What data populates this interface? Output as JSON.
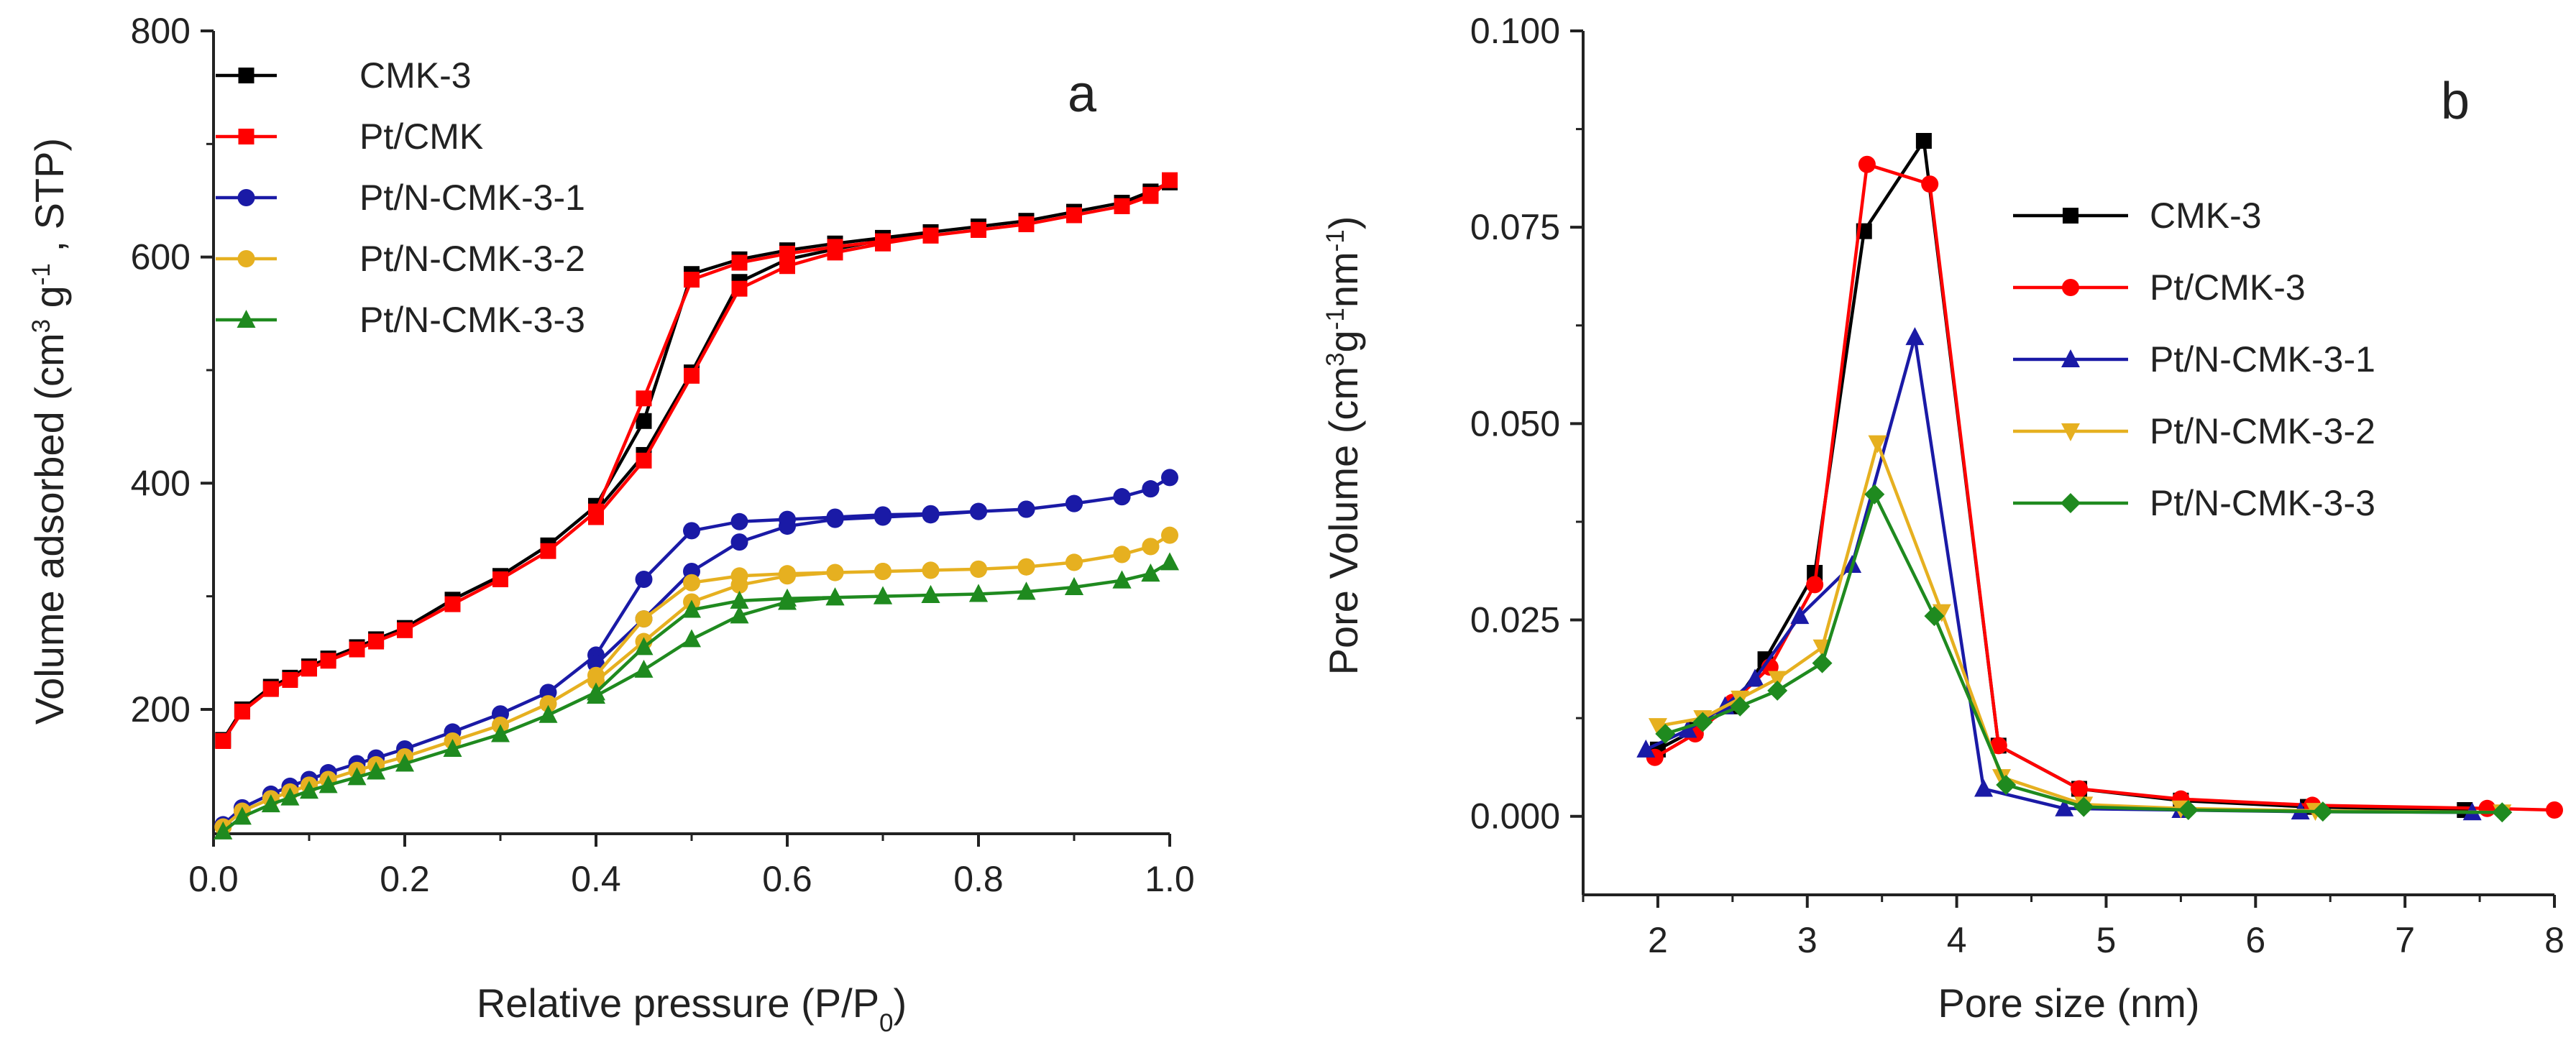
{
  "chart_data": [
    {
      "panel": "a",
      "type": "line",
      "title": "",
      "xlabel": "Relative pressure (P/P0)",
      "xlabel_parts": [
        "Relative pressure (P/P",
        "0",
        ")"
      ],
      "ylabel": "Volume adsorbed (cm3 g-1, STP)",
      "ylabel_parts": [
        "Volume adsorbed (cm",
        "3",
        " g",
        "-1",
        " , STP)"
      ],
      "xlim": [
        0,
        1.0
      ],
      "ylim": [
        90,
        800
      ],
      "xticks": [
        0.0,
        0.2,
        0.4,
        0.6,
        0.8,
        1.0
      ],
      "xtick_labels": [
        "0.0",
        "0.2",
        "0.4",
        "0.6",
        "0.8",
        "1.0"
      ],
      "yticks": [
        200,
        400,
        600,
        800
      ],
      "ytick_labels": [
        "200",
        "400",
        "600",
        "800"
      ],
      "grid": false,
      "legend_position": "top-left",
      "series": [
        {
          "name": "CMK-3",
          "color": "#000000",
          "marker": "square",
          "x": [
            0.01,
            0.03,
            0.06,
            0.08,
            0.1,
            0.12,
            0.15,
            0.17,
            0.2,
            0.25,
            0.3,
            0.35,
            0.4,
            0.45,
            0.5,
            0.55,
            0.6,
            0.65,
            0.7,
            0.75,
            0.8,
            0.85,
            0.9,
            0.95,
            0.98,
            1.0,
            0.98,
            0.95,
            0.9,
            0.85,
            0.8,
            0.75,
            0.7,
            0.65,
            0.6,
            0.55,
            0.5,
            0.45,
            0.4
          ],
          "y": [
            173,
            200,
            220,
            228,
            238,
            245,
            255,
            262,
            272,
            297,
            318,
            345,
            380,
            455,
            585,
            598,
            606,
            612,
            617,
            622,
            627,
            632,
            640,
            648,
            657,
            666,
            658,
            648,
            640,
            632,
            627,
            622,
            615,
            607,
            598,
            578,
            498,
            425,
            375
          ]
        },
        {
          "name": "Pt/CMK",
          "color": "#ff0000",
          "marker": "square",
          "x": [
            0.01,
            0.03,
            0.06,
            0.08,
            0.1,
            0.12,
            0.15,
            0.17,
            0.2,
            0.25,
            0.3,
            0.35,
            0.4,
            0.45,
            0.5,
            0.55,
            0.6,
            0.65,
            0.7,
            0.75,
            0.8,
            0.85,
            0.9,
            0.95,
            0.98,
            1.0,
            0.98,
            0.95,
            0.9,
            0.85,
            0.8,
            0.75,
            0.7,
            0.65,
            0.6,
            0.55,
            0.5,
            0.45,
            0.4
          ],
          "y": [
            172,
            198,
            218,
            226,
            236,
            243,
            253,
            260,
            270,
            293,
            315,
            340,
            375,
            475,
            580,
            595,
            603,
            609,
            614,
            619,
            624,
            629,
            637,
            645,
            654,
            668,
            655,
            645,
            637,
            629,
            624,
            619,
            612,
            604,
            592,
            572,
            495,
            420,
            370
          ]
        },
        {
          "name": "Pt/N-CMK-3-1",
          "color": "#1a1aa6",
          "marker": "circle",
          "x": [
            0.01,
            0.03,
            0.06,
            0.08,
            0.1,
            0.12,
            0.15,
            0.17,
            0.2,
            0.25,
            0.3,
            0.35,
            0.4,
            0.45,
            0.5,
            0.55,
            0.6,
            0.65,
            0.7,
            0.75,
            0.8,
            0.85,
            0.9,
            0.95,
            0.98,
            1.0,
            0.98,
            0.95,
            0.9,
            0.85,
            0.8,
            0.75,
            0.7,
            0.65,
            0.6,
            0.55,
            0.5,
            0.45,
            0.4
          ],
          "y": [
            98,
            113,
            125,
            132,
            138,
            144,
            152,
            157,
            165,
            180,
            196,
            215,
            248,
            315,
            358,
            366,
            368,
            370,
            372,
            373,
            375,
            377,
            382,
            388,
            395,
            405,
            395,
            388,
            382,
            377,
            375,
            372,
            370,
            368,
            362,
            348,
            322,
            280,
            240
          ]
        },
        {
          "name": "Pt/N-CMK-3-2",
          "color": "#e6b020",
          "marker": "circle",
          "x": [
            0.01,
            0.03,
            0.06,
            0.08,
            0.1,
            0.12,
            0.15,
            0.17,
            0.2,
            0.25,
            0.3,
            0.35,
            0.4,
            0.45,
            0.5,
            0.55,
            0.6,
            0.65,
            0.7,
            0.75,
            0.8,
            0.85,
            0.9,
            0.95,
            0.98,
            1.0,
            0.98,
            0.95,
            0.9,
            0.85,
            0.8,
            0.75,
            0.7,
            0.65,
            0.6,
            0.55,
            0.5,
            0.45,
            0.4
          ],
          "y": [
            96,
            110,
            121,
            127,
            133,
            138,
            146,
            151,
            158,
            172,
            186,
            205,
            230,
            280,
            312,
            318,
            320,
            321,
            322,
            323,
            324,
            326,
            330,
            337,
            344,
            354,
            344,
            337,
            330,
            326,
            324,
            323,
            322,
            321,
            318,
            310,
            295,
            260,
            225
          ]
        },
        {
          "name": "Pt/N-CMK-3-3",
          "color": "#1f8a1f",
          "marker": "triangle",
          "x": [
            0.01,
            0.03,
            0.06,
            0.08,
            0.1,
            0.12,
            0.15,
            0.17,
            0.2,
            0.25,
            0.3,
            0.35,
            0.4,
            0.45,
            0.5,
            0.55,
            0.6,
            0.65,
            0.7,
            0.75,
            0.8,
            0.85,
            0.9,
            0.95,
            0.98,
            1.0,
            0.98,
            0.95,
            0.9,
            0.85,
            0.8,
            0.75,
            0.7,
            0.65,
            0.6,
            0.55,
            0.5,
            0.45,
            0.4
          ],
          "y": [
            92,
            105,
            116,
            122,
            128,
            133,
            140,
            145,
            152,
            165,
            178,
            195,
            215,
            255,
            288,
            296,
            298,
            299,
            300,
            301,
            302,
            304,
            308,
            314,
            320,
            330,
            320,
            314,
            308,
            304,
            302,
            301,
            300,
            299,
            295,
            283,
            262,
            235,
            212
          ]
        }
      ]
    },
    {
      "panel": "b",
      "type": "line",
      "title": "",
      "xlabel": "Pore size (nm)",
      "ylabel": "Pore Volume (cm3g-1nm-1)",
      "ylabel_parts": [
        "Pore Volume (cm",
        "3",
        "g",
        "-1",
        "nm",
        "-1",
        ")"
      ],
      "xlim": [
        1.5,
        8
      ],
      "ylim": [
        -0.01,
        0.1
      ],
      "xticks": [
        2,
        3,
        4,
        5,
        6,
        7,
        8
      ],
      "xtick_labels": [
        "2",
        "3",
        "4",
        "5",
        "6",
        "7",
        "8"
      ],
      "yticks": [
        0.0,
        0.025,
        0.05,
        0.075,
        0.1
      ],
      "ytick_labels": [
        "0.000",
        "0.025",
        "0.050",
        "0.075",
        "0.100"
      ],
      "grid": false,
      "legend_position": "top-right",
      "series": [
        {
          "name": "CMK-3",
          "color": "#000000",
          "marker": "square",
          "x": [
            2.0,
            2.25,
            2.5,
            2.72,
            3.05,
            3.38,
            3.78,
            4.28,
            4.82,
            5.5,
            6.35,
            7.4
          ],
          "y": [
            0.0085,
            0.011,
            0.014,
            0.02,
            0.031,
            0.0745,
            0.086,
            0.009,
            0.0035,
            0.002,
            0.0012,
            0.0008
          ]
        },
        {
          "name": "Pt/CMK-3",
          "color": "#ff0000",
          "marker": "circle",
          "x": [
            1.98,
            2.25,
            2.5,
            2.75,
            3.05,
            3.4,
            3.82,
            4.28,
            4.82,
            5.5,
            6.38,
            7.55,
            8.0
          ],
          "y": [
            0.0075,
            0.0105,
            0.0145,
            0.019,
            0.0295,
            0.083,
            0.0805,
            0.009,
            0.0035,
            0.0022,
            0.0014,
            0.001,
            0.0008
          ]
        },
        {
          "name": "Pt/N-CMK-3-1",
          "color": "#1a1aa6",
          "marker": "triangle",
          "x": [
            1.92,
            2.2,
            2.45,
            2.65,
            2.95,
            3.3,
            3.72,
            4.18,
            4.72,
            5.5,
            6.3,
            7.45
          ],
          "y": [
            0.0085,
            0.011,
            0.014,
            0.0175,
            0.0255,
            0.032,
            0.061,
            0.0035,
            0.001,
            0.0008,
            0.0006,
            0.0005
          ]
        },
        {
          "name": "Pt/N-CMK-3-2",
          "color": "#e6b020",
          "marker": "triangle-down",
          "x": [
            2.0,
            2.3,
            2.55,
            2.8,
            3.1,
            3.47,
            3.9,
            4.3,
            4.85,
            5.5,
            6.4,
            7.65
          ],
          "y": [
            0.0115,
            0.0125,
            0.015,
            0.0175,
            0.0215,
            0.0475,
            0.026,
            0.005,
            0.0015,
            0.001,
            0.0007,
            0.0005
          ]
        },
        {
          "name": "Pt/N-CMK-3-3",
          "color": "#1f8a1f",
          "marker": "diamond",
          "x": [
            2.05,
            2.3,
            2.55,
            2.8,
            3.1,
            3.45,
            3.85,
            4.33,
            4.85,
            5.55,
            6.45,
            7.65
          ],
          "y": [
            0.0105,
            0.012,
            0.014,
            0.016,
            0.0195,
            0.041,
            0.0255,
            0.004,
            0.0012,
            0.0008,
            0.0006,
            0.0005
          ]
        }
      ]
    }
  ]
}
